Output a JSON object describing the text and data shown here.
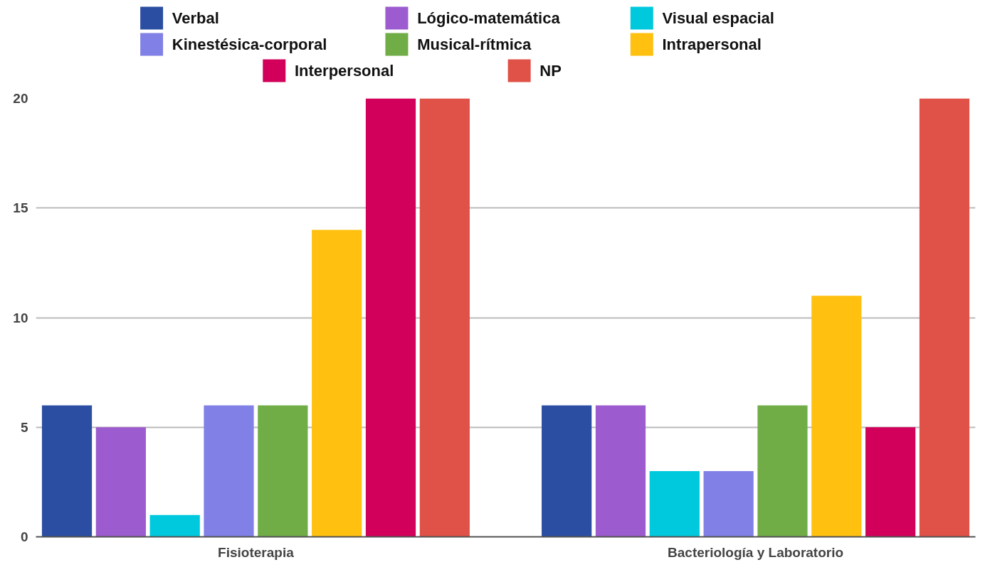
{
  "chart_data": {
    "type": "bar",
    "categories": [
      "Fisioterapia",
      "Bacteriología y Laboratorio"
    ],
    "series": [
      {
        "name": "Verbal",
        "color": "#2b4ea3",
        "values": [
          6,
          6
        ]
      },
      {
        "name": "Lógico-matemática",
        "color": "#9c5bce",
        "values": [
          5,
          6
        ]
      },
      {
        "name": "Visual espacial",
        "color": "#00c9dd",
        "values": [
          1,
          3
        ]
      },
      {
        "name": "Kinestésica-corporal",
        "color": "#8080e6",
        "values": [
          6,
          3
        ]
      },
      {
        "name": "Musical-rítmica",
        "color": "#70ad47",
        "values": [
          6,
          6
        ]
      },
      {
        "name": "Intrapersonal",
        "color": "#ffc010",
        "values": [
          14,
          11
        ]
      },
      {
        "name": "Interpersonal",
        "color": "#d2005a",
        "values": [
          20,
          5
        ]
      },
      {
        "name": "NP",
        "color": "#e05147",
        "values": [
          20,
          20
        ]
      }
    ],
    "ylim": [
      0,
      20
    ],
    "yticks": [
      0,
      5,
      10,
      15,
      20
    ],
    "grid": "y",
    "legend": "top"
  }
}
